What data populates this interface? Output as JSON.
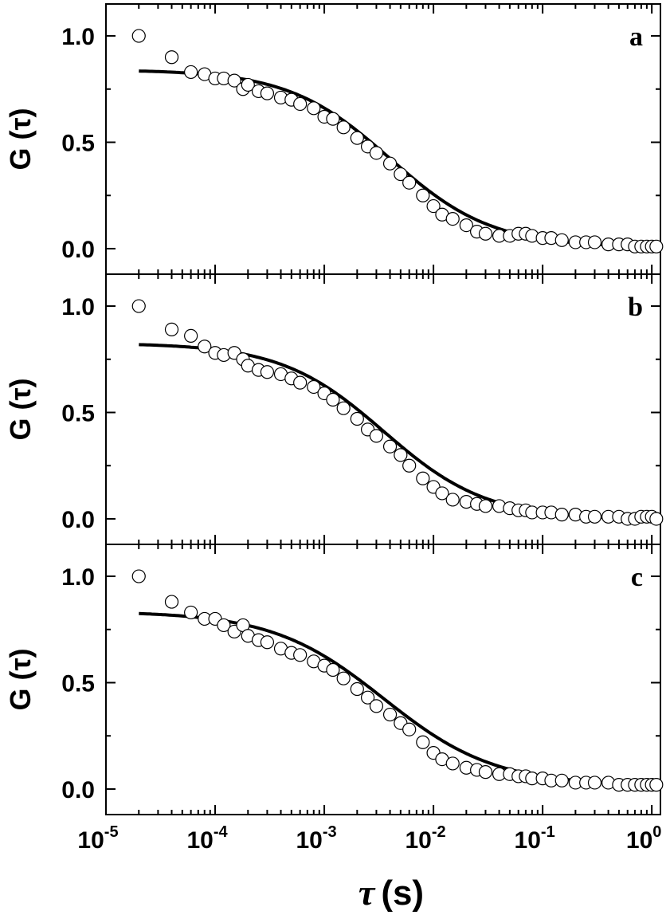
{
  "chart_data": [
    {
      "type": "scatter",
      "panel_label": "a",
      "ylabel": "G (τ)",
      "xscale": "log",
      "xlim": [
        1e-05,
        1.2
      ],
      "ylim": [
        -0.12,
        1.15
      ],
      "yticks": [
        "0.0",
        "0.5",
        "1.0"
      ],
      "yticks_values": [
        0,
        0.5,
        1.0
      ],
      "series": [
        {
          "kind": "points",
          "x": [
            2e-05,
            4e-05,
            6e-05,
            8e-05,
            0.0001,
            0.00012,
            0.00015,
            0.00018,
            0.0002,
            0.00025,
            0.0003,
            0.0004,
            0.0005,
            0.0006,
            0.0008,
            0.001,
            0.0012,
            0.0015,
            0.002,
            0.0025,
            0.003,
            0.004,
            0.005,
            0.006,
            0.008,
            0.01,
            0.012,
            0.015,
            0.02,
            0.025,
            0.03,
            0.04,
            0.05,
            0.06,
            0.07,
            0.08,
            0.1,
            0.12,
            0.15,
            0.2,
            0.25,
            0.3,
            0.4,
            0.5,
            0.6,
            0.7,
            0.8,
            0.9,
            1.0,
            1.1
          ],
          "y": [
            1.0,
            0.9,
            0.83,
            0.82,
            0.8,
            0.8,
            0.79,
            0.75,
            0.77,
            0.74,
            0.73,
            0.71,
            0.7,
            0.68,
            0.66,
            0.62,
            0.61,
            0.57,
            0.52,
            0.48,
            0.45,
            0.4,
            0.35,
            0.31,
            0.25,
            0.2,
            0.16,
            0.14,
            0.11,
            0.08,
            0.07,
            0.06,
            0.06,
            0.07,
            0.07,
            0.06,
            0.05,
            0.05,
            0.04,
            0.03,
            0.03,
            0.03,
            0.02,
            0.02,
            0.02,
            0.01,
            0.01,
            0.01,
            0.01,
            0.01
          ]
        },
        {
          "kind": "fit",
          "g0": 0.835,
          "tau_d": 0.004,
          "alpha": 0.93,
          "offset": 0.006
        }
      ]
    },
    {
      "type": "scatter",
      "panel_label": "b",
      "ylabel": "G (τ)",
      "xscale": "log",
      "xlim": [
        1e-05,
        1.2
      ],
      "ylim": [
        -0.12,
        1.15
      ],
      "yticks": [
        "0.0",
        "0.5",
        "1.0"
      ],
      "yticks_values": [
        0,
        0.5,
        1.0
      ],
      "series": [
        {
          "kind": "points",
          "x": [
            2e-05,
            4e-05,
            6e-05,
            8e-05,
            0.0001,
            0.00012,
            0.00015,
            0.00018,
            0.0002,
            0.00025,
            0.0003,
            0.0004,
            0.0005,
            0.0006,
            0.0008,
            0.001,
            0.0012,
            0.0015,
            0.002,
            0.0025,
            0.003,
            0.004,
            0.005,
            0.006,
            0.008,
            0.01,
            0.012,
            0.015,
            0.02,
            0.025,
            0.03,
            0.04,
            0.05,
            0.06,
            0.07,
            0.08,
            0.1,
            0.12,
            0.15,
            0.2,
            0.25,
            0.3,
            0.4,
            0.5,
            0.6,
            0.7,
            0.8,
            0.9,
            1.0,
            1.1
          ],
          "y": [
            1.0,
            0.89,
            0.86,
            0.81,
            0.78,
            0.77,
            0.78,
            0.75,
            0.72,
            0.7,
            0.69,
            0.68,
            0.66,
            0.64,
            0.62,
            0.59,
            0.56,
            0.52,
            0.47,
            0.42,
            0.39,
            0.34,
            0.3,
            0.25,
            0.19,
            0.15,
            0.12,
            0.09,
            0.08,
            0.07,
            0.06,
            0.06,
            0.05,
            0.04,
            0.04,
            0.03,
            0.03,
            0.03,
            0.02,
            0.02,
            0.01,
            0.01,
            0.01,
            0.01,
            0.0,
            0.0,
            0.01,
            0.01,
            0.01,
            0.0
          ]
        },
        {
          "kind": "fit",
          "g0": 0.83,
          "tau_d": 0.0035,
          "alpha": 0.92,
          "offset": -0.004
        }
      ]
    },
    {
      "type": "scatter",
      "panel_label": "c",
      "ylabel": "G (τ)",
      "xscale": "log",
      "xlim": [
        1e-05,
        1.2
      ],
      "ylim": [
        -0.12,
        1.15
      ],
      "yticks": [
        "0.0",
        "0.5",
        "1.0"
      ],
      "yticks_values": [
        0,
        0.5,
        1.0
      ],
      "xticks": [
        "10",
        "10",
        "10",
        "10",
        "10",
        "10"
      ],
      "xticks_exponents": [
        "-5",
        "-4",
        "-3",
        "-2",
        "-1",
        "0"
      ],
      "xticks_values": [
        1e-05,
        0.0001,
        0.001,
        0.01,
        0.1,
        1
      ],
      "xlabel_symbol": "τ",
      "xlabel_unit": "(s)",
      "series": [
        {
          "kind": "points",
          "x": [
            2e-05,
            4e-05,
            6e-05,
            8e-05,
            0.0001,
            0.00012,
            0.00015,
            0.00018,
            0.0002,
            0.00025,
            0.0003,
            0.0004,
            0.0005,
            0.0006,
            0.0008,
            0.001,
            0.0012,
            0.0015,
            0.002,
            0.0025,
            0.003,
            0.004,
            0.005,
            0.006,
            0.008,
            0.01,
            0.012,
            0.015,
            0.02,
            0.025,
            0.03,
            0.04,
            0.05,
            0.06,
            0.07,
            0.08,
            0.1,
            0.12,
            0.15,
            0.2,
            0.25,
            0.3,
            0.4,
            0.5,
            0.6,
            0.7,
            0.8,
            0.9,
            1.0,
            1.1
          ],
          "y": [
            1.0,
            0.88,
            0.83,
            0.8,
            0.8,
            0.77,
            0.74,
            0.77,
            0.72,
            0.7,
            0.69,
            0.66,
            0.64,
            0.63,
            0.6,
            0.58,
            0.56,
            0.52,
            0.47,
            0.43,
            0.39,
            0.35,
            0.31,
            0.28,
            0.22,
            0.17,
            0.14,
            0.12,
            0.1,
            0.09,
            0.08,
            0.07,
            0.07,
            0.06,
            0.06,
            0.05,
            0.05,
            0.04,
            0.04,
            0.03,
            0.03,
            0.03,
            0.03,
            0.02,
            0.02,
            0.02,
            0.02,
            0.02,
            0.02,
            0.02
          ]
        },
        {
          "kind": "fit",
          "g0": 0.82,
          "tau_d": 0.0035,
          "alpha": 0.85,
          "offset": 0.015
        }
      ]
    }
  ]
}
